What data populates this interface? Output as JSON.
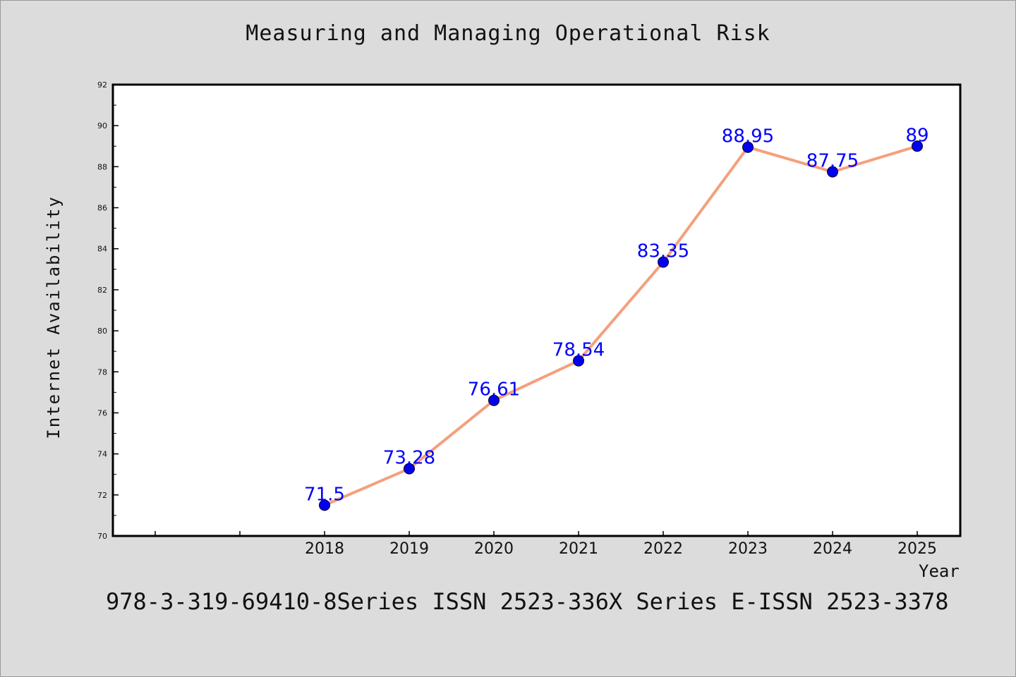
{
  "chart_data": {
    "type": "line",
    "title": "Measuring and Managing Operational Risk",
    "xlabel": "Year",
    "ylabel": "Internet Availability",
    "categories": [
      "2018",
      "2019",
      "2020",
      "2021",
      "2022",
      "2023",
      "2024",
      "2025"
    ],
    "series": [
      {
        "values": [
          71.5,
          73.28,
          76.61,
          78.54,
          83.35,
          88.95,
          87.75,
          89
        ]
      }
    ],
    "data_labels": [
      "71.5",
      "73.28",
      "76.61",
      "78.54",
      "83.35",
      "88.95",
      "87.75",
      "89"
    ],
    "ylim": [
      70,
      92
    ],
    "yticks": [
      70,
      72,
      74,
      76,
      78,
      80,
      82,
      84,
      86,
      88,
      90,
      92
    ],
    "grid": false,
    "legend": "none",
    "colors": {
      "line": "#f4a07c",
      "marker": "#0000ee",
      "label": "#0000ff",
      "background": "#dcdcdc",
      "plot_bg": "#ffffff"
    }
  },
  "footer": "978-3-319-69410-8Series ISSN 2523-336X Series E-ISSN 2523-3378"
}
